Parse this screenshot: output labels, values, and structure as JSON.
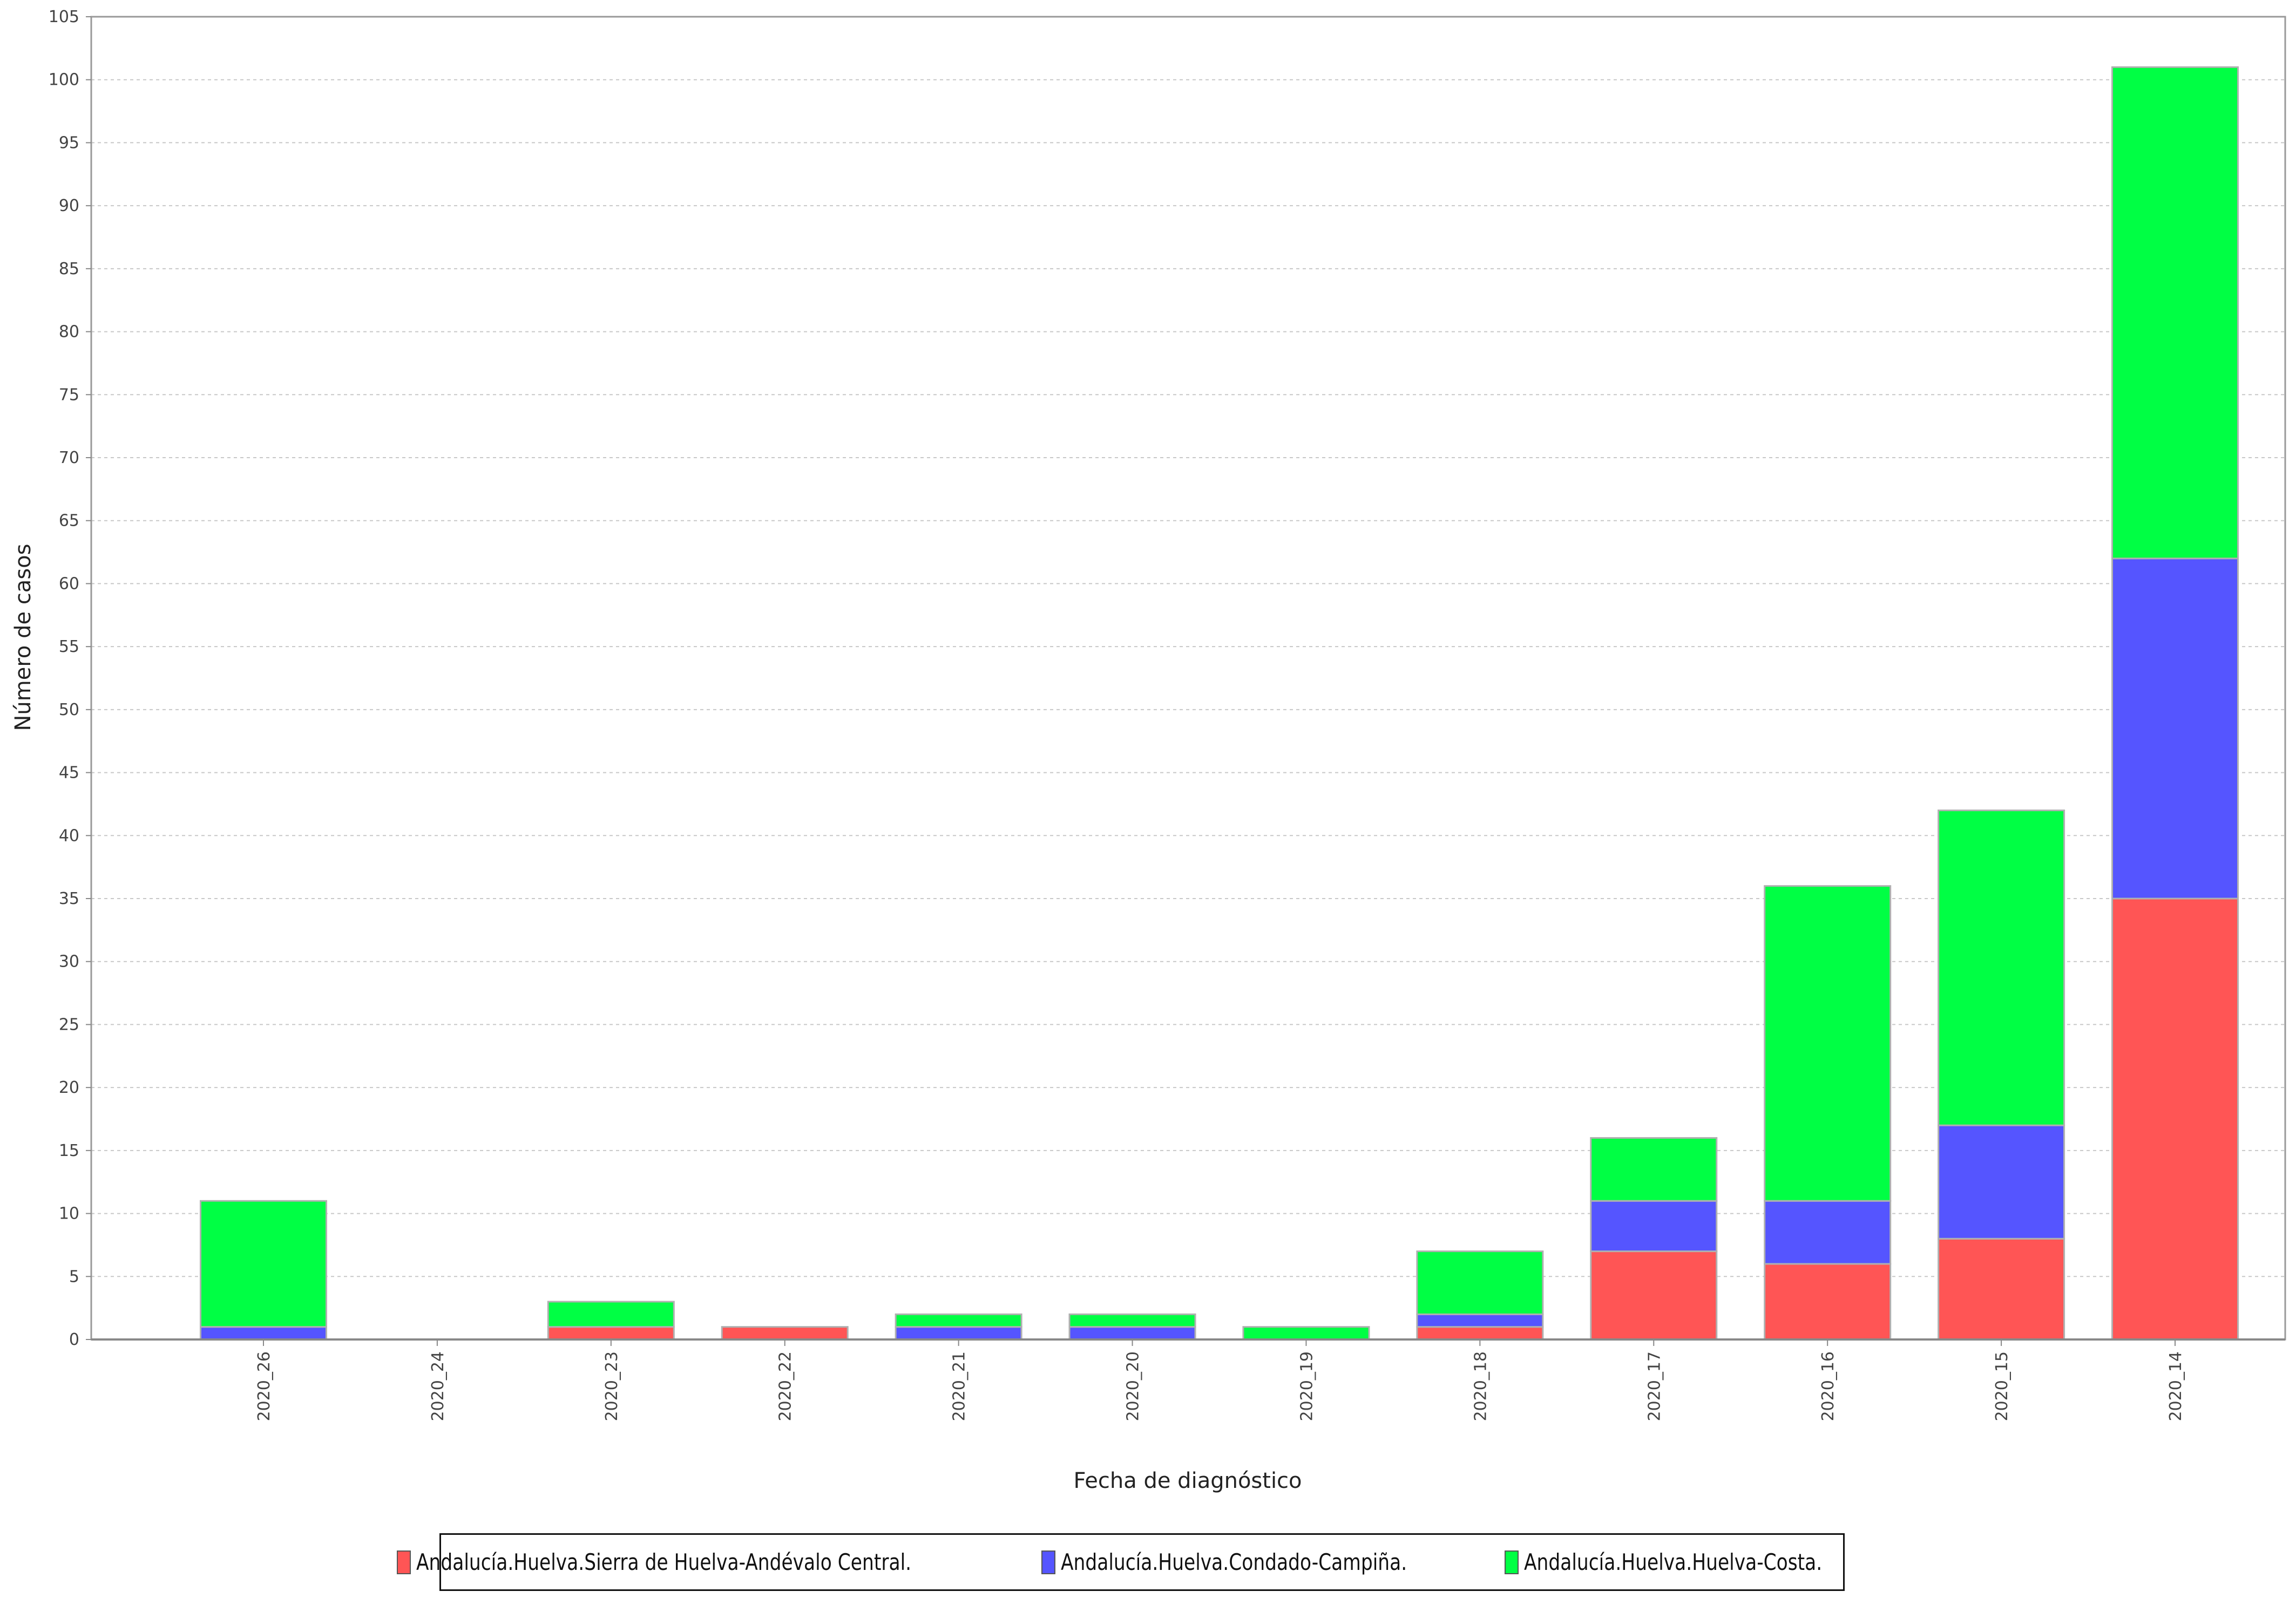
{
  "chart_data": {
    "type": "bar",
    "stacked": true,
    "title": "",
    "xlabel": "Fecha de diagnóstico",
    "ylabel": "Número de casos",
    "ylim": [
      0,
      105
    ],
    "ytick_step": 5,
    "grid": true,
    "legend_position": "bottom",
    "categories": [
      "2020_26",
      "2020_24",
      "2020_23",
      "2020_22",
      "2020_21",
      "2020_20",
      "2020_19",
      "2020_18",
      "2020_17",
      "2020_16",
      "2020_15",
      "2020_14"
    ],
    "series": [
      {
        "name": "Andalucía.Huelva.Sierra de Huelva-Andévalo Central.",
        "color": "#ff5555",
        "values": [
          0,
          0,
          1,
          1,
          0,
          0,
          0,
          1,
          7,
          6,
          8,
          35
        ]
      },
      {
        "name": "Andalucía.Huelva.Condado-Campiña.",
        "color": "#5555ff",
        "values": [
          1,
          0,
          0,
          0,
          1,
          1,
          0,
          1,
          4,
          5,
          9,
          27
        ]
      },
      {
        "name": "Andalucía.Huelva.Huelva-Costa.",
        "color": "#00ff44",
        "values": [
          10,
          0,
          2,
          0,
          1,
          1,
          1,
          5,
          5,
          25,
          25,
          39
        ]
      }
    ]
  }
}
